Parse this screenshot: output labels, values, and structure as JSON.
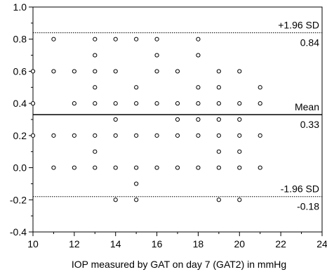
{
  "chart_data": {
    "type": "scatter",
    "title": "",
    "xlabel": "IOP measured by GAT on day 7 (GAT2) in mmHg",
    "ylabel": "",
    "xlim": [
      10,
      24
    ],
    "ylim": [
      -0.4,
      1.0
    ],
    "x_ticks": [
      "10",
      "12",
      "14",
      "16",
      "18",
      "20",
      "22",
      "24"
    ],
    "y_ticks": [
      "-0.4",
      "-0.2",
      "0.0",
      "0.2",
      "0.4",
      "0.6",
      "0.8",
      "1.0"
    ],
    "grid": false,
    "marker": "open-circle",
    "points": [
      {
        "x": 10,
        "y": 0.6
      },
      {
        "x": 10,
        "y": 0.4
      },
      {
        "x": 10,
        "y": 0.2
      },
      {
        "x": 11,
        "y": 0.8
      },
      {
        "x": 11,
        "y": 0.6
      },
      {
        "x": 11,
        "y": 0.2
      },
      {
        "x": 11,
        "y": 0.0
      },
      {
        "x": 12,
        "y": 0.6
      },
      {
        "x": 12,
        "y": 0.4
      },
      {
        "x": 12,
        "y": 0.2
      },
      {
        "x": 12,
        "y": 0.0
      },
      {
        "x": 13,
        "y": 0.8
      },
      {
        "x": 13,
        "y": 0.7
      },
      {
        "x": 13,
        "y": 0.6
      },
      {
        "x": 13,
        "y": 0.5
      },
      {
        "x": 13,
        "y": 0.4
      },
      {
        "x": 13,
        "y": 0.2
      },
      {
        "x": 13,
        "y": 0.1
      },
      {
        "x": 13,
        "y": 0.0
      },
      {
        "x": 14,
        "y": 0.8
      },
      {
        "x": 14,
        "y": 0.6
      },
      {
        "x": 14,
        "y": 0.4
      },
      {
        "x": 14,
        "y": 0.3
      },
      {
        "x": 14,
        "y": 0.2
      },
      {
        "x": 14,
        "y": 0.0
      },
      {
        "x": 14,
        "y": -0.2
      },
      {
        "x": 15,
        "y": 0.8
      },
      {
        "x": 15,
        "y": 0.5
      },
      {
        "x": 15,
        "y": 0.4
      },
      {
        "x": 15,
        "y": 0.2
      },
      {
        "x": 15,
        "y": 0.0
      },
      {
        "x": 15,
        "y": -0.1
      },
      {
        "x": 15,
        "y": -0.2
      },
      {
        "x": 16,
        "y": 0.8
      },
      {
        "x": 16,
        "y": 0.7
      },
      {
        "x": 16,
        "y": 0.6
      },
      {
        "x": 16,
        "y": 0.4
      },
      {
        "x": 16,
        "y": 0.2
      },
      {
        "x": 16,
        "y": 0.0
      },
      {
        "x": 17,
        "y": 0.6
      },
      {
        "x": 17,
        "y": 0.4
      },
      {
        "x": 17,
        "y": 0.3
      },
      {
        "x": 17,
        "y": 0.2
      },
      {
        "x": 17,
        "y": 0.0
      },
      {
        "x": 18,
        "y": 0.8
      },
      {
        "x": 18,
        "y": 0.7
      },
      {
        "x": 18,
        "y": 0.5
      },
      {
        "x": 18,
        "y": 0.4
      },
      {
        "x": 18,
        "y": 0.3
      },
      {
        "x": 18,
        "y": 0.2
      },
      {
        "x": 18,
        "y": 0.0
      },
      {
        "x": 19,
        "y": 0.6
      },
      {
        "x": 19,
        "y": 0.5
      },
      {
        "x": 19,
        "y": 0.4
      },
      {
        "x": 19,
        "y": 0.3
      },
      {
        "x": 19,
        "y": 0.2
      },
      {
        "x": 19,
        "y": 0.1
      },
      {
        "x": 19,
        "y": 0.0
      },
      {
        "x": 19,
        "y": -0.2
      },
      {
        "x": 20,
        "y": 0.6
      },
      {
        "x": 20,
        "y": 0.4
      },
      {
        "x": 20,
        "y": 0.3
      },
      {
        "x": 20,
        "y": 0.2
      },
      {
        "x": 20,
        "y": 0.1
      },
      {
        "x": 20,
        "y": 0.0
      },
      {
        "x": 20,
        "y": -0.2
      },
      {
        "x": 21,
        "y": 0.5
      },
      {
        "x": 21,
        "y": 0.4
      },
      {
        "x": 21,
        "y": 0.2
      },
      {
        "x": 21,
        "y": 0.0
      }
    ],
    "reference_lines": [
      {
        "label": "+1.96 SD",
        "value": 0.84,
        "value_label": "0.84",
        "style": "dotted"
      },
      {
        "label": "Mean",
        "value": 0.33,
        "value_label": "0.33",
        "style": "solid"
      },
      {
        "label": "-1.96 SD",
        "value": -0.18,
        "value_label": "-0.18",
        "style": "dotted"
      }
    ]
  }
}
